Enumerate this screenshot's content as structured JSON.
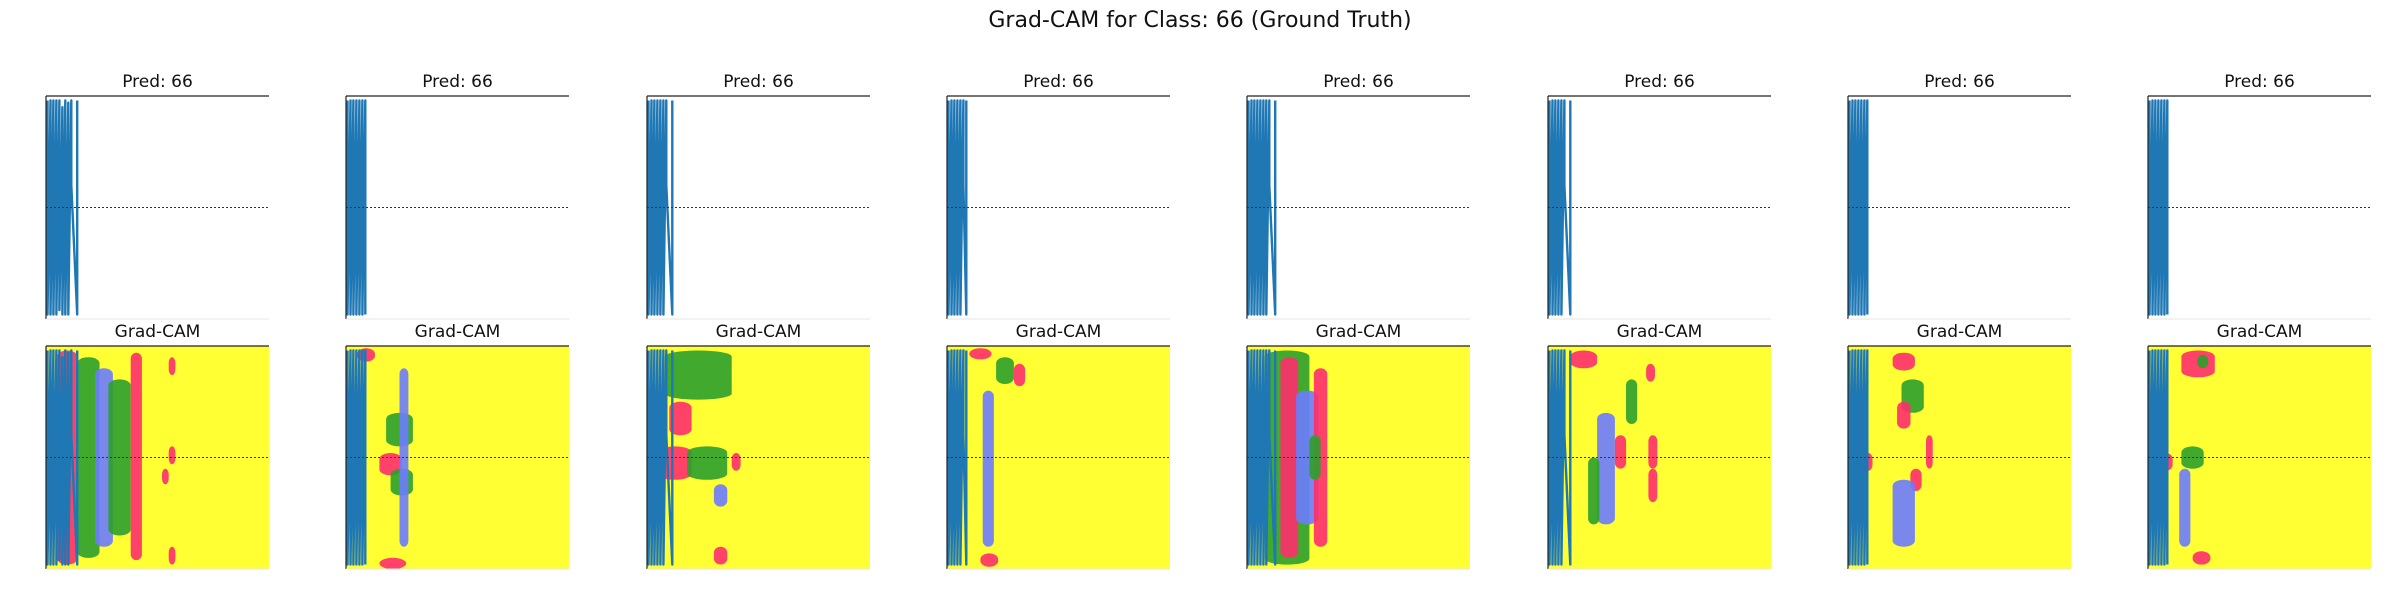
{
  "figure": {
    "title": "Grad-CAM for Class: 66 (Ground Truth)"
  },
  "colors": {
    "trace": "#1f77b4",
    "heat_background": "#ffff33",
    "heat_hot": "#ff2d6e",
    "heat_mid": "#2ca02c",
    "heat_low": "#6b7bff",
    "midline": "#333333"
  },
  "chart_data": [
    {
      "type": "line",
      "title": "Pred: 66",
      "row": "prediction",
      "samples": [
        {
          "x": 0,
          "y": 0.02
        },
        {
          "x": 0,
          "y": 0.98
        },
        {
          "x": 1,
          "y": 0.02
        },
        {
          "x": 1,
          "y": 0.98
        },
        {
          "x": 2,
          "y": 0.02
        },
        {
          "x": 2,
          "y": 0.98
        },
        {
          "x": 3,
          "y": 0.02
        },
        {
          "x": 3,
          "y": 0.98
        },
        {
          "x": 4,
          "y": 0.02
        },
        {
          "x": 4,
          "y": 0.96
        },
        {
          "x": 5,
          "y": 0.05
        },
        {
          "x": 5,
          "y": 0.98
        },
        {
          "x": 6,
          "y": 0.02
        },
        {
          "x": 6,
          "y": 0.98
        },
        {
          "x": 7,
          "y": 0.03
        },
        {
          "x": 7,
          "y": 0.98
        },
        {
          "x": 8,
          "y": 0.02
        },
        {
          "x": 8,
          "y": 0.4
        },
        {
          "x": 10,
          "y": 0.98
        },
        {
          "x": 10,
          "y": 0.02
        }
      ]
    },
    {
      "type": "line",
      "title": "Pred: 66",
      "row": "prediction",
      "samples": [
        {
          "x": 0,
          "y": 0.02
        },
        {
          "x": 0,
          "y": 0.98
        },
        {
          "x": 1,
          "y": 0.02
        },
        {
          "x": 1,
          "y": 0.98
        },
        {
          "x": 2,
          "y": 0.02
        },
        {
          "x": 2,
          "y": 0.98
        },
        {
          "x": 3,
          "y": 0.02
        },
        {
          "x": 3,
          "y": 0.98
        },
        {
          "x": 4,
          "y": 0.02
        },
        {
          "x": 4,
          "y": 0.98
        },
        {
          "x": 5,
          "y": 0.02
        },
        {
          "x": 5,
          "y": 0.98
        },
        {
          "x": 6,
          "y": 0.02
        },
        {
          "x": 6,
          "y": 0.98
        }
      ]
    },
    {
      "type": "line",
      "title": "Pred: 66",
      "row": "prediction",
      "samples": [
        {
          "x": 0,
          "y": 0.02
        },
        {
          "x": 0,
          "y": 0.98
        },
        {
          "x": 1,
          "y": 0.02
        },
        {
          "x": 1,
          "y": 0.98
        },
        {
          "x": 2,
          "y": 0.02
        },
        {
          "x": 2,
          "y": 0.98
        },
        {
          "x": 3,
          "y": 0.02
        },
        {
          "x": 3,
          "y": 0.98
        },
        {
          "x": 4,
          "y": 0.02
        },
        {
          "x": 4,
          "y": 0.98
        },
        {
          "x": 5,
          "y": 0.02
        },
        {
          "x": 5,
          "y": 0.98
        },
        {
          "x": 6,
          "y": 0.02
        },
        {
          "x": 6,
          "y": 0.4
        },
        {
          "x": 8,
          "y": 0.98
        },
        {
          "x": 8,
          "y": 0.02
        }
      ]
    },
    {
      "type": "line",
      "title": "Pred: 66",
      "row": "prediction",
      "samples": [
        {
          "x": 0,
          "y": 0.02
        },
        {
          "x": 0,
          "y": 0.98
        },
        {
          "x": 1,
          "y": 0.02
        },
        {
          "x": 1,
          "y": 0.98
        },
        {
          "x": 2,
          "y": 0.02
        },
        {
          "x": 2,
          "y": 0.98
        },
        {
          "x": 3,
          "y": 0.02
        },
        {
          "x": 3,
          "y": 0.98
        },
        {
          "x": 4,
          "y": 0.02
        },
        {
          "x": 4,
          "y": 0.98
        },
        {
          "x": 5,
          "y": 0.02
        },
        {
          "x": 5,
          "y": 0.4
        },
        {
          "x": 6,
          "y": 0.98
        },
        {
          "x": 6,
          "y": 0.02
        }
      ]
    },
    {
      "type": "line",
      "title": "Pred: 66",
      "row": "prediction",
      "samples": [
        {
          "x": 0,
          "y": 0.02
        },
        {
          "x": 0,
          "y": 0.98
        },
        {
          "x": 1,
          "y": 0.02
        },
        {
          "x": 1,
          "y": 0.98
        },
        {
          "x": 2,
          "y": 0.02
        },
        {
          "x": 2,
          "y": 0.98
        },
        {
          "x": 3,
          "y": 0.02
        },
        {
          "x": 3,
          "y": 0.98
        },
        {
          "x": 4,
          "y": 0.02
        },
        {
          "x": 4,
          "y": 0.98
        },
        {
          "x": 5,
          "y": 0.02
        },
        {
          "x": 5,
          "y": 0.98
        },
        {
          "x": 6,
          "y": 0.02
        },
        {
          "x": 6,
          "y": 0.98
        },
        {
          "x": 7,
          "y": 0.02
        },
        {
          "x": 7,
          "y": 0.4
        },
        {
          "x": 9,
          "y": 0.98
        },
        {
          "x": 9,
          "y": 0.02
        }
      ]
    },
    {
      "type": "line",
      "title": "Pred: 66",
      "row": "prediction",
      "samples": [
        {
          "x": 0,
          "y": 0.02
        },
        {
          "x": 0,
          "y": 0.98
        },
        {
          "x": 1,
          "y": 0.02
        },
        {
          "x": 1,
          "y": 0.98
        },
        {
          "x": 2,
          "y": 0.02
        },
        {
          "x": 2,
          "y": 0.98
        },
        {
          "x": 3,
          "y": 0.02
        },
        {
          "x": 3,
          "y": 0.98
        },
        {
          "x": 4,
          "y": 0.02
        },
        {
          "x": 4,
          "y": 0.98
        },
        {
          "x": 5,
          "y": 0.02
        },
        {
          "x": 5,
          "y": 0.4
        },
        {
          "x": 7,
          "y": 0.98
        },
        {
          "x": 7,
          "y": 0.02
        }
      ]
    },
    {
      "type": "line",
      "title": "Pred: 66",
      "row": "prediction",
      "samples": [
        {
          "x": 0,
          "y": 0.02
        },
        {
          "x": 0,
          "y": 0.98
        },
        {
          "x": 1,
          "y": 0.02
        },
        {
          "x": 1,
          "y": 0.98
        },
        {
          "x": 2,
          "y": 0.02
        },
        {
          "x": 2,
          "y": 0.98
        },
        {
          "x": 3,
          "y": 0.02
        },
        {
          "x": 3,
          "y": 0.98
        },
        {
          "x": 4,
          "y": 0.02
        },
        {
          "x": 4,
          "y": 0.98
        },
        {
          "x": 5,
          "y": 0.02
        },
        {
          "x": 5,
          "y": 0.98
        },
        {
          "x": 6,
          "y": 0.02
        },
        {
          "x": 6,
          "y": 0.98
        }
      ]
    },
    {
      "type": "line",
      "title": "Pred: 66",
      "row": "prediction",
      "samples": [
        {
          "x": 0,
          "y": 0.02
        },
        {
          "x": 0,
          "y": 0.98
        },
        {
          "x": 1,
          "y": 0.02
        },
        {
          "x": 1,
          "y": 0.98
        },
        {
          "x": 2,
          "y": 0.02
        },
        {
          "x": 2,
          "y": 0.98
        },
        {
          "x": 3,
          "y": 0.02
        },
        {
          "x": 3,
          "y": 0.98
        },
        {
          "x": 4,
          "y": 0.02
        },
        {
          "x": 4,
          "y": 0.98
        },
        {
          "x": 5,
          "y": 0.02
        },
        {
          "x": 5,
          "y": 0.98
        },
        {
          "x": 6,
          "y": 0.02
        },
        {
          "x": 6,
          "y": 0.98
        }
      ]
    },
    {
      "type": "heatmap",
      "title": "Grad-CAM",
      "row": "gradcam",
      "trace_ref": 0,
      "hotspots": [
        {
          "x": 0.05,
          "y": 0.02,
          "w": 0.09,
          "h": 0.96,
          "intensity": "hot"
        },
        {
          "x": 0.14,
          "y": 0.05,
          "w": 0.1,
          "h": 0.9,
          "intensity": "mid"
        },
        {
          "x": 0.22,
          "y": 0.1,
          "w": 0.08,
          "h": 0.8,
          "intensity": "low"
        },
        {
          "x": 0.28,
          "y": 0.15,
          "w": 0.1,
          "h": 0.7,
          "intensity": "mid"
        },
        {
          "x": 0.38,
          "y": 0.03,
          "w": 0.05,
          "h": 0.93,
          "intensity": "hot"
        },
        {
          "x": 0.52,
          "y": 0.55,
          "w": 0.03,
          "h": 0.07,
          "intensity": "hot"
        },
        {
          "x": 0.55,
          "y": 0.05,
          "w": 0.03,
          "h": 0.08,
          "intensity": "hot"
        },
        {
          "x": 0.55,
          "y": 0.45,
          "w": 0.03,
          "h": 0.08,
          "intensity": "hot"
        },
        {
          "x": 0.55,
          "y": 0.9,
          "w": 0.03,
          "h": 0.08,
          "intensity": "hot"
        }
      ]
    },
    {
      "type": "heatmap",
      "title": "Grad-CAM",
      "row": "gradcam",
      "trace_ref": 1,
      "hotspots": [
        {
          "x": 0.05,
          "y": 0.01,
          "w": 0.08,
          "h": 0.06,
          "intensity": "hot"
        },
        {
          "x": 0.18,
          "y": 0.3,
          "w": 0.12,
          "h": 0.15,
          "intensity": "mid"
        },
        {
          "x": 0.15,
          "y": 0.48,
          "w": 0.1,
          "h": 0.1,
          "intensity": "hot"
        },
        {
          "x": 0.2,
          "y": 0.55,
          "w": 0.1,
          "h": 0.12,
          "intensity": "mid"
        },
        {
          "x": 0.15,
          "y": 0.95,
          "w": 0.12,
          "h": 0.05,
          "intensity": "hot"
        },
        {
          "x": 0.24,
          "y": 0.1,
          "w": 0.04,
          "h": 0.8,
          "intensity": "low"
        }
      ]
    },
    {
      "type": "heatmap",
      "title": "Grad-CAM",
      "row": "gradcam",
      "trace_ref": 2,
      "hotspots": [
        {
          "x": 0.08,
          "y": 0.02,
          "w": 0.3,
          "h": 0.22,
          "intensity": "mid"
        },
        {
          "x": 0.1,
          "y": 0.25,
          "w": 0.1,
          "h": 0.15,
          "intensity": "hot"
        },
        {
          "x": 0.05,
          "y": 0.45,
          "w": 0.15,
          "h": 0.15,
          "intensity": "hot"
        },
        {
          "x": 0.18,
          "y": 0.45,
          "w": 0.18,
          "h": 0.15,
          "intensity": "mid"
        },
        {
          "x": 0.38,
          "y": 0.48,
          "w": 0.04,
          "h": 0.08,
          "intensity": "hot"
        },
        {
          "x": 0.3,
          "y": 0.62,
          "w": 0.06,
          "h": 0.1,
          "intensity": "low"
        },
        {
          "x": 0.3,
          "y": 0.9,
          "w": 0.06,
          "h": 0.08,
          "intensity": "hot"
        }
      ]
    },
    {
      "type": "heatmap",
      "title": "Grad-CAM",
      "row": "gradcam",
      "trace_ref": 3,
      "hotspots": [
        {
          "x": 0.1,
          "y": 0.01,
          "w": 0.1,
          "h": 0.05,
          "intensity": "hot"
        },
        {
          "x": 0.22,
          "y": 0.05,
          "w": 0.08,
          "h": 0.12,
          "intensity": "mid"
        },
        {
          "x": 0.3,
          "y": 0.08,
          "w": 0.05,
          "h": 0.1,
          "intensity": "hot"
        },
        {
          "x": 0.16,
          "y": 0.2,
          "w": 0.05,
          "h": 0.7,
          "intensity": "low"
        },
        {
          "x": 0.15,
          "y": 0.93,
          "w": 0.08,
          "h": 0.06,
          "intensity": "hot"
        }
      ]
    },
    {
      "type": "heatmap",
      "title": "Grad-CAM",
      "row": "gradcam",
      "trace_ref": 4,
      "hotspots": [
        {
          "x": 0.08,
          "y": 0.02,
          "w": 0.2,
          "h": 0.96,
          "intensity": "mid"
        },
        {
          "x": 0.15,
          "y": 0.05,
          "w": 0.08,
          "h": 0.9,
          "intensity": "hot"
        },
        {
          "x": 0.22,
          "y": 0.2,
          "w": 0.1,
          "h": 0.6,
          "intensity": "low"
        },
        {
          "x": 0.3,
          "y": 0.1,
          "w": 0.06,
          "h": 0.8,
          "intensity": "hot"
        },
        {
          "x": 0.28,
          "y": 0.4,
          "w": 0.05,
          "h": 0.2,
          "intensity": "mid"
        }
      ]
    },
    {
      "type": "heatmap",
      "title": "Grad-CAM",
      "row": "gradcam",
      "trace_ref": 5,
      "hotspots": [
        {
          "x": 0.1,
          "y": 0.02,
          "w": 0.12,
          "h": 0.08,
          "intensity": "hot"
        },
        {
          "x": 0.22,
          "y": 0.3,
          "w": 0.08,
          "h": 0.5,
          "intensity": "low"
        },
        {
          "x": 0.18,
          "y": 0.5,
          "w": 0.05,
          "h": 0.3,
          "intensity": "mid"
        },
        {
          "x": 0.3,
          "y": 0.4,
          "w": 0.05,
          "h": 0.15,
          "intensity": "hot"
        },
        {
          "x": 0.35,
          "y": 0.15,
          "w": 0.05,
          "h": 0.2,
          "intensity": "mid"
        },
        {
          "x": 0.45,
          "y": 0.4,
          "w": 0.04,
          "h": 0.15,
          "intensity": "hot"
        },
        {
          "x": 0.45,
          "y": 0.55,
          "w": 0.04,
          "h": 0.15,
          "intensity": "hot"
        },
        {
          "x": 0.44,
          "y": 0.08,
          "w": 0.04,
          "h": 0.08,
          "intensity": "hot"
        }
      ]
    },
    {
      "type": "heatmap",
      "title": "Grad-CAM",
      "row": "gradcam",
      "trace_ref": 6,
      "hotspots": [
        {
          "x": 0.2,
          "y": 0.03,
          "w": 0.1,
          "h": 0.08,
          "intensity": "hot"
        },
        {
          "x": 0.24,
          "y": 0.15,
          "w": 0.1,
          "h": 0.15,
          "intensity": "mid"
        },
        {
          "x": 0.22,
          "y": 0.25,
          "w": 0.06,
          "h": 0.12,
          "intensity": "hot"
        },
        {
          "x": 0.07,
          "y": 0.48,
          "w": 0.04,
          "h": 0.08,
          "intensity": "hot"
        },
        {
          "x": 0.28,
          "y": 0.55,
          "w": 0.05,
          "h": 0.1,
          "intensity": "hot"
        },
        {
          "x": 0.35,
          "y": 0.4,
          "w": 0.03,
          "h": 0.15,
          "intensity": "hot"
        },
        {
          "x": 0.2,
          "y": 0.6,
          "w": 0.1,
          "h": 0.3,
          "intensity": "low"
        }
      ]
    },
    {
      "type": "heatmap",
      "title": "Grad-CAM",
      "row": "gradcam",
      "trace_ref": 7,
      "hotspots": [
        {
          "x": 0.15,
          "y": 0.02,
          "w": 0.15,
          "h": 0.12,
          "intensity": "hot"
        },
        {
          "x": 0.22,
          "y": 0.04,
          "w": 0.05,
          "h": 0.06,
          "intensity": "mid"
        },
        {
          "x": 0.05,
          "y": 0.48,
          "w": 0.06,
          "h": 0.08,
          "intensity": "hot"
        },
        {
          "x": 0.15,
          "y": 0.45,
          "w": 0.1,
          "h": 0.1,
          "intensity": "mid"
        },
        {
          "x": 0.14,
          "y": 0.55,
          "w": 0.05,
          "h": 0.35,
          "intensity": "low"
        },
        {
          "x": 0.2,
          "y": 0.92,
          "w": 0.08,
          "h": 0.06,
          "intensity": "hot"
        }
      ]
    }
  ]
}
